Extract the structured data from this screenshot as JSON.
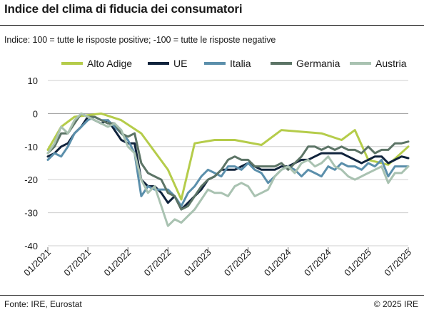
{
  "header": {
    "title": "Indice del clima di fiducia dei consumatori",
    "subtitle": "Indice: 100 = tutte le risposte positive; -100 =  tutte le risposte negative"
  },
  "footer": {
    "source": "Fonte: IRE, Eurostat",
    "copyright": "© 2025 IRE"
  },
  "chart_data": {
    "type": "line",
    "ylim": [
      -40,
      10
    ],
    "yticks": [
      10,
      0,
      -10,
      -20,
      -30,
      -40
    ],
    "x": [
      "01/2021",
      "02/2021",
      "03/2021",
      "04/2021",
      "05/2021",
      "06/2021",
      "07/2021",
      "08/2021",
      "09/2021",
      "10/2021",
      "11/2021",
      "12/2021",
      "01/2022",
      "02/2022",
      "03/2022",
      "04/2022",
      "05/2022",
      "06/2022",
      "07/2022",
      "08/2022",
      "09/2022",
      "10/2022",
      "11/2022",
      "12/2022",
      "01/2023",
      "02/2023",
      "03/2023",
      "04/2023",
      "05/2023",
      "06/2023",
      "07/2023",
      "08/2023",
      "09/2023",
      "10/2023",
      "11/2023",
      "12/2023",
      "01/2024",
      "02/2024",
      "03/2024",
      "04/2024",
      "05/2024",
      "06/2024",
      "07/2024",
      "08/2024",
      "09/2024",
      "10/2024",
      "11/2024",
      "12/2024",
      "01/2025",
      "02/2025",
      "03/2025",
      "04/2025",
      "05/2025",
      "06/2025",
      "07/2025"
    ],
    "xtick_labels": [
      "01/2021",
      "07/2021",
      "01/2022",
      "07/2022",
      "01/2023",
      "07/2023",
      "01/2024",
      "07/2024",
      "01/2025",
      "07/2025"
    ],
    "grid": "horizontal",
    "legend": "top",
    "series": [
      {
        "name": "Alto Adige",
        "color": "#b5cc4a",
        "points": [
          [
            "01/2021",
            -11
          ],
          [
            "03/2021",
            -4
          ],
          [
            "05/2021",
            -1
          ],
          [
            "09/2021",
            0
          ],
          [
            "12/2021",
            -2
          ],
          [
            "03/2022",
            -6
          ],
          [
            "07/2022",
            -17
          ],
          [
            "09/2022",
            -26
          ],
          [
            "11/2022",
            -9
          ],
          [
            "02/2023",
            -8
          ],
          [
            "05/2023",
            -8
          ],
          [
            "09/2023",
            -9.5
          ],
          [
            "12/2023",
            -5
          ],
          [
            "06/2024",
            -6
          ],
          [
            "09/2024",
            -8
          ],
          [
            "11/2024",
            -5
          ],
          [
            "01/2025",
            -14
          ],
          [
            "04/2025",
            -15.5
          ],
          [
            "07/2025",
            -10
          ]
        ]
      },
      {
        "name": "UE",
        "color": "#10233c",
        "values": [
          -13,
          -12,
          -10,
          -9,
          -6,
          -4,
          -1,
          -2,
          -3,
          -2,
          -5,
          -8,
          -9,
          -9,
          -20,
          -22,
          -22,
          -24,
          -27,
          -25,
          -29,
          -27,
          -25,
          -23,
          -20,
          -19,
          -17,
          -17,
          -17,
          -16,
          -15,
          -16,
          -17,
          -17,
          -17,
          -16,
          -16,
          -15,
          -14,
          -14,
          -13,
          -12,
          -12,
          -12,
          -12,
          -13,
          -14,
          -15,
          -14,
          -13,
          -13,
          -15,
          -14,
          -13,
          -13.5
        ]
      },
      {
        "name": "Italia",
        "color": "#5b8fab",
        "values": [
          -14,
          -12,
          -13,
          -10,
          -6,
          -4,
          -2,
          -1,
          -2,
          -2,
          -4,
          -6,
          -8,
          -12,
          -25,
          -22,
          -23,
          -23,
          -23,
          -25,
          -28,
          -24,
          -22,
          -19,
          -17,
          -18,
          -19,
          -16,
          -16,
          -17,
          -15,
          -17,
          -18,
          -21,
          -19,
          -17,
          -16,
          -17,
          -19,
          -17,
          -18,
          -19,
          -16,
          -17,
          -15,
          -16,
          -16,
          -17,
          -15,
          -16,
          -14,
          -19,
          -16,
          -16,
          -16
        ]
      },
      {
        "name": "Germania",
        "color": "#5c7466",
        "values": [
          -12,
          -10,
          -6,
          -6,
          -3,
          0,
          -1,
          -1,
          -2,
          -3,
          -3,
          -6,
          -7,
          -6,
          -15,
          -18,
          -19,
          -20,
          -24,
          -25,
          -29,
          -28,
          -25,
          -22,
          -20,
          -19,
          -17,
          -14,
          -13,
          -14,
          -14,
          -16,
          -16,
          -16,
          -16,
          -15,
          -17,
          -15,
          -13,
          -10,
          -10,
          -11,
          -10,
          -11,
          -10,
          -11,
          -11,
          -12,
          -10,
          -12,
          -11,
          -11,
          -9,
          -9,
          -8.5
        ]
      },
      {
        "name": "Austria",
        "color": "#a9c2b1",
        "values": [
          -12,
          -9,
          -4,
          -6,
          -2,
          0,
          -1,
          -2,
          -3,
          -4,
          -3,
          -5,
          -10,
          -12,
          -20,
          -24,
          -22,
          -28,
          -34,
          -32,
          -33,
          -31,
          -29,
          -26,
          -23,
          -24,
          -24,
          -25,
          -22,
          -21,
          -22,
          -25,
          -24,
          -23,
          -19,
          -17,
          -16,
          -18,
          -15,
          -14,
          -16,
          -15,
          -13,
          -16,
          -17,
          -19,
          -20,
          -19,
          -18,
          -17,
          -16,
          -21,
          -18,
          -18,
          -16
        ]
      }
    ]
  }
}
